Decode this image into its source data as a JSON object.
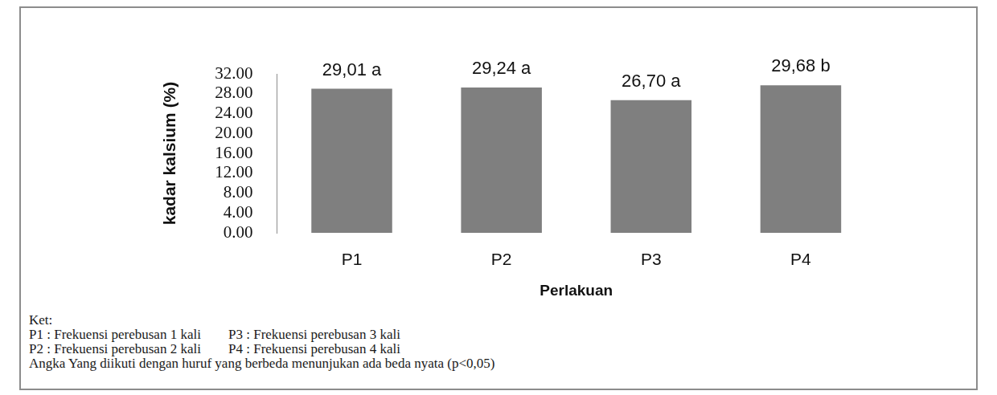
{
  "chart_data": {
    "type": "bar",
    "y_label": "kadar kalsium (%)",
    "x_label": "Perlakuan",
    "categories": [
      "P1",
      "P2",
      "P3",
      "P4"
    ],
    "values": [
      29.01,
      29.24,
      26.7,
      29.68
    ],
    "value_labels": [
      "29,01 a",
      "29,24 a",
      "26,70 a",
      "29,68 b"
    ],
    "data_labels": true,
    "color": "#7f7f7f",
    "ylim": [
      0,
      32
    ],
    "yticks": [
      {
        "value": 0,
        "label": "0.00"
      },
      {
        "value": 4,
        "label": "4.00"
      },
      {
        "value": 8,
        "label": "8.00"
      },
      {
        "value": 12,
        "label": "12.00"
      },
      {
        "value": 16,
        "label": "16.00"
      },
      {
        "value": 20,
        "label": "20.00"
      },
      {
        "value": 24,
        "label": "24.00"
      },
      {
        "value": 28,
        "label": "28.00"
      },
      {
        "value": 32,
        "label": "32.00"
      }
    ],
    "grid": false,
    "annotations": [
      "Ket:",
      "P1 : Frekuensi perebusan 1 kali",
      "P3 : Frekuensi perebusan 3 kali",
      "P2 : Frekuensi perebusan 2 kali",
      "P4 : Frekuensi perebusan 4 kali",
      "Angka Yang diikuti dengan huruf yang berbeda menunjukan ada beda nyata (p<0,05)"
    ]
  }
}
